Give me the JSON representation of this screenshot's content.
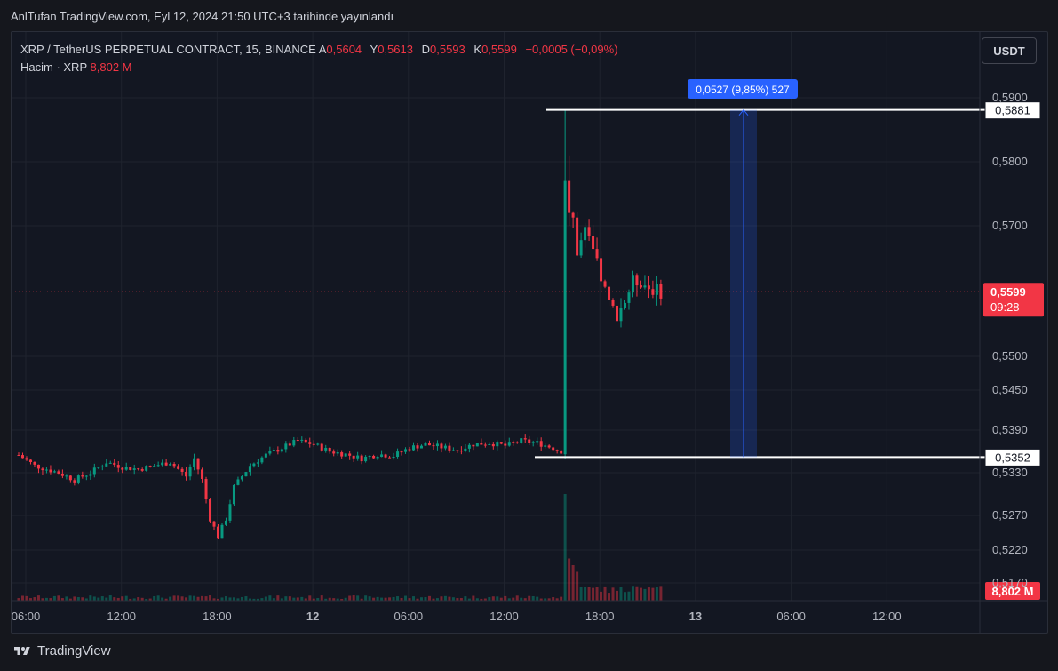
{
  "caption": "AnlTufan TradingView.com, Eyl 12, 2024 21:50 UTC+3 tarihinde yayınlandı",
  "legend": {
    "symbol": "XRP / TetherUS PERPETUAL CONTRACT, 15, BINANCE",
    "o_label": "A",
    "o_value": "0,5604",
    "h_label": "Y",
    "h_value": "0,5613",
    "l_label": "D",
    "l_value": "0,5593",
    "c_label": "K",
    "c_value": "0,5599",
    "change": "−0,0005 (−0,09%)",
    "volume_label": "Hacim · XRP",
    "volume_value": "8,802 M"
  },
  "currency_button": "USDT",
  "footer_brand": "TradingView",
  "colors": {
    "up": "#089981",
    "down": "#f23645",
    "background": "#131722",
    "measure": "#2962ff"
  },
  "chart_data": {
    "type": "candlestick",
    "timeframe": "15",
    "y_ticks": [
      "0,5900",
      "0,5800",
      "0,5700",
      "0,5500",
      "0,5450",
      "0,5390",
      "0,5330",
      "0,5270",
      "0,5220",
      "0,5170"
    ],
    "x_ticks": [
      "06:00",
      "12:00",
      "18:00",
      "12",
      "06:00",
      "12:00",
      "18:00",
      "13",
      "06:00",
      "12:00"
    ],
    "current_price": "0,5599",
    "countdown": "09:28",
    "volume_badge": "8,802 M",
    "lines": [
      {
        "label": "0,5881",
        "value": 0.5881
      },
      {
        "label": "0,5352",
        "value": 0.5352
      }
    ],
    "measure_label": "0,0527 (9,85%) 527",
    "price_path": [
      [
        "11 05:30",
        0.5355
      ],
      [
        "11 06:30",
        0.534
      ],
      [
        "11 08:00",
        0.533
      ],
      [
        "11 09:00",
        0.532
      ],
      [
        "11 10:00",
        0.533
      ],
      [
        "11 11:00",
        0.5345
      ],
      [
        "11 12:00",
        0.5338
      ],
      [
        "11 13:00",
        0.5335
      ],
      [
        "11 14:00",
        0.534
      ],
      [
        "11 15:00",
        0.5345
      ],
      [
        "11 16:00",
        0.5325
      ],
      [
        "11 16:30",
        0.535
      ],
      [
        "11 17:00",
        0.532
      ],
      [
        "11 17:30",
        0.5265
      ],
      [
        "11 18:00",
        0.524
      ],
      [
        "11 18:30",
        0.5265
      ],
      [
        "11 19:00",
        0.531
      ],
      [
        "11 20:00",
        0.534
      ],
      [
        "11 21:00",
        0.5355
      ],
      [
        "11 22:00",
        0.5365
      ],
      [
        "11 23:00",
        0.5375
      ],
      [
        "12 00:00",
        0.537
      ],
      [
        "12 01:00",
        0.536
      ],
      [
        "12 02:00",
        0.5356
      ],
      [
        "12 03:00",
        0.535
      ],
      [
        "12 04:00",
        0.5356
      ],
      [
        "12 05:00",
        0.5354
      ],
      [
        "12 06:00",
        0.5365
      ],
      [
        "12 07:00",
        0.537
      ],
      [
        "12 08:00",
        0.5366
      ],
      [
        "12 09:00",
        0.5362
      ],
      [
        "12 10:00",
        0.537
      ],
      [
        "12 11:00",
        0.5372
      ],
      [
        "12 12:00",
        0.5368
      ],
      [
        "12 13:00",
        0.5375
      ],
      [
        "12 14:00",
        0.5372
      ],
      [
        "12 15:00",
        0.5365
      ],
      [
        "12 15:45",
        0.5358
      ],
      [
        "12 16:00",
        0.576
      ],
      [
        "12 16:30",
        0.566
      ],
      [
        "12 17:00",
        0.569
      ],
      [
        "12 17:30",
        0.566
      ],
      [
        "12 18:00",
        0.562
      ],
      [
        "12 18:30",
        0.558
      ],
      [
        "12 19:00",
        0.5565
      ],
      [
        "12 19:30",
        0.5585
      ],
      [
        "12 20:00",
        0.5615
      ],
      [
        "12 20:30",
        0.5615
      ],
      [
        "12 21:00",
        0.5605
      ],
      [
        "12 21:45",
        0.5599
      ]
    ],
    "spike": {
      "time": "12 15:45",
      "low": 0.535,
      "high": 0.5881
    }
  }
}
